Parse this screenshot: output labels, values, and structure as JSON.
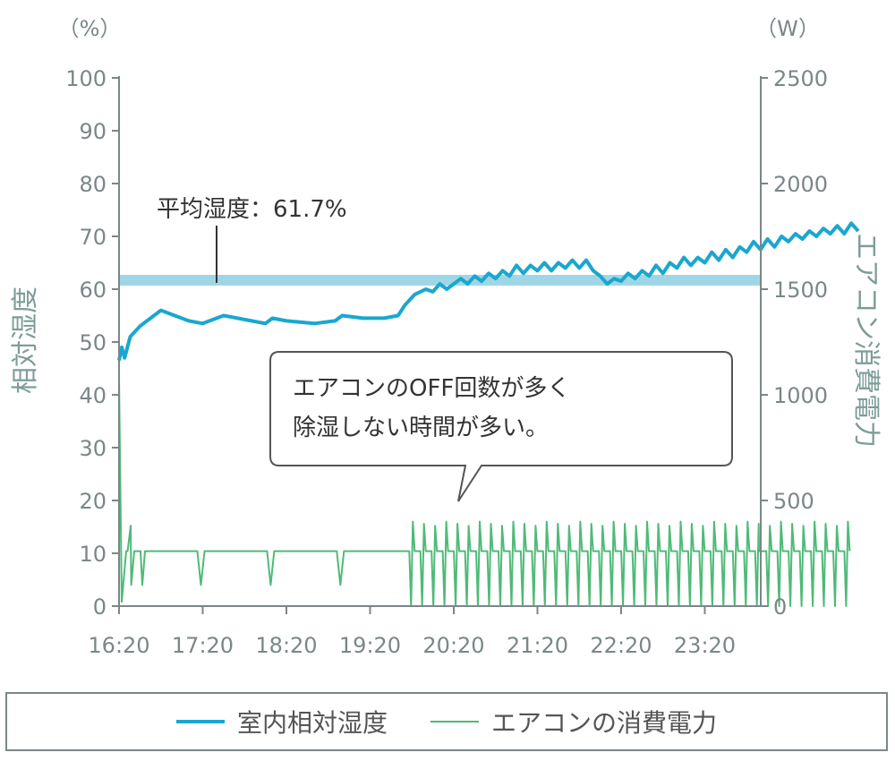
{
  "chart_data": {
    "type": "line",
    "x_ticks": [
      "16:20",
      "17:20",
      "18:20",
      "19:20",
      "20:20",
      "21:20",
      "22:20",
      "23:20"
    ],
    "left_axis": {
      "unit": "（%）",
      "label": "相対湿度",
      "ylim": [
        0,
        100
      ],
      "ticks": [
        "100",
        "90",
        "80",
        "70",
        "60",
        "50",
        "40",
        "30",
        "20",
        "10",
        "0"
      ]
    },
    "right_axis": {
      "unit": "（W）",
      "label": "エアコン消費電力",
      "ylim": [
        0,
        2500
      ],
      "ticks": [
        "2500",
        "2000",
        "1500",
        "1000",
        "500",
        "0"
      ]
    },
    "reference_line": {
      "label": "平均湿度：61.7%",
      "value": 61.7
    },
    "annotation": {
      "line1": "エアコンのOFF回数が多く",
      "line2": "除湿しない時間が多い。"
    },
    "legend": {
      "humidity": "室内相対湿度",
      "power": "エアコンの消費電力"
    },
    "colors": {
      "humidity": "#1aa7cf",
      "power": "#4fba78",
      "reference": "#9fd6e6",
      "axis": "#7a8788"
    },
    "series": [
      {
        "name": "室内相対湿度",
        "axis": "left",
        "points": [
          [
            "16:20",
            46.5
          ],
          [
            "16:22",
            49
          ],
          [
            "16:24",
            47
          ],
          [
            "16:28",
            51
          ],
          [
            "16:35",
            53
          ],
          [
            "16:45",
            55
          ],
          [
            "16:50",
            56
          ],
          [
            "17:00",
            55
          ],
          [
            "17:10",
            54
          ],
          [
            "17:20",
            53.5
          ],
          [
            "17:30",
            54.5
          ],
          [
            "17:35",
            55
          ],
          [
            "17:45",
            54.5
          ],
          [
            "17:55",
            54
          ],
          [
            "18:05",
            53.5
          ],
          [
            "18:10",
            54.5
          ],
          [
            "18:20",
            54
          ],
          [
            "18:40",
            53.5
          ],
          [
            "18:55",
            54
          ],
          [
            "19:00",
            55
          ],
          [
            "19:15",
            54.5
          ],
          [
            "19:30",
            54.5
          ],
          [
            "19:40",
            55
          ],
          [
            "19:45",
            57
          ],
          [
            "19:52",
            59
          ],
          [
            "20:00",
            60
          ],
          [
            "20:05",
            59.5
          ],
          [
            "20:10",
            61
          ],
          [
            "20:15",
            60
          ],
          [
            "20:20",
            61
          ],
          [
            "20:25",
            62
          ],
          [
            "20:30",
            61
          ],
          [
            "20:35",
            62.5
          ],
          [
            "20:40",
            61.5
          ],
          [
            "20:45",
            63
          ],
          [
            "20:50",
            62
          ],
          [
            "20:55",
            63.5
          ],
          [
            "21:00",
            62.5
          ],
          [
            "21:05",
            64.5
          ],
          [
            "21:10",
            63
          ],
          [
            "21:15",
            64.5
          ],
          [
            "21:20",
            63.5
          ],
          [
            "21:25",
            65
          ],
          [
            "21:30",
            63.5
          ],
          [
            "21:35",
            65
          ],
          [
            "21:40",
            64
          ],
          [
            "21:45",
            65.5
          ],
          [
            "21:50",
            64
          ],
          [
            "21:55",
            65.5
          ],
          [
            "22:00",
            63.5
          ],
          [
            "22:05",
            62.5
          ],
          [
            "22:10",
            61
          ],
          [
            "22:15",
            62
          ],
          [
            "22:20",
            61.5
          ],
          [
            "22:25",
            63
          ],
          [
            "22:30",
            62
          ],
          [
            "22:35",
            63.5
          ],
          [
            "22:40",
            62.5
          ],
          [
            "22:45",
            64.5
          ],
          [
            "22:50",
            63
          ],
          [
            "22:55",
            65
          ],
          [
            "23:00",
            64
          ],
          [
            "23:05",
            66
          ],
          [
            "23:10",
            64.5
          ],
          [
            "23:15",
            66
          ],
          [
            "23:20",
            65
          ],
          [
            "23:25",
            67
          ],
          [
            "23:30",
            65.5
          ],
          [
            "23:35",
            67.5
          ],
          [
            "23:40",
            66
          ],
          [
            "23:45",
            68
          ],
          [
            "23:50",
            67
          ],
          [
            "23:55",
            69
          ],
          [
            "00:00",
            67.5
          ],
          [
            "00:05",
            69.5
          ],
          [
            "00:10",
            68
          ],
          [
            "00:15",
            70
          ],
          [
            "00:20",
            69
          ],
          [
            "00:25",
            70.5
          ],
          [
            "00:30",
            69.5
          ],
          [
            "00:35",
            71
          ],
          [
            "00:40",
            70
          ],
          [
            "00:45",
            71.5
          ],
          [
            "00:50",
            70.5
          ],
          [
            "00:55",
            72
          ],
          [
            "01:00",
            70.5
          ],
          [
            "01:05",
            72.5
          ],
          [
            "01:10",
            71
          ]
        ]
      },
      {
        "name": "エアコンの消費電力",
        "axis": "right",
        "baseline": 260,
        "peak": 400,
        "offs_flat": [
          "16:30",
          "17:20",
          "18:10",
          "19:00"
        ],
        "spikes": [
          "19:50",
          "19:58",
          "20:06",
          "20:14",
          "20:22",
          "20:30",
          "20:38",
          "20:46",
          "20:54",
          "21:02",
          "21:10",
          "21:18",
          "21:26",
          "21:34",
          "21:42",
          "21:50",
          "21:58",
          "22:06",
          "22:14",
          "22:22",
          "22:30",
          "22:38",
          "22:46",
          "22:54",
          "23:02",
          "23:10",
          "23:18",
          "23:26",
          "23:34",
          "23:42",
          "23:50",
          "23:58",
          "00:06",
          "00:14",
          "00:22",
          "00:30",
          "00:38",
          "00:46",
          "00:54",
          "01:02"
        ]
      }
    ]
  }
}
